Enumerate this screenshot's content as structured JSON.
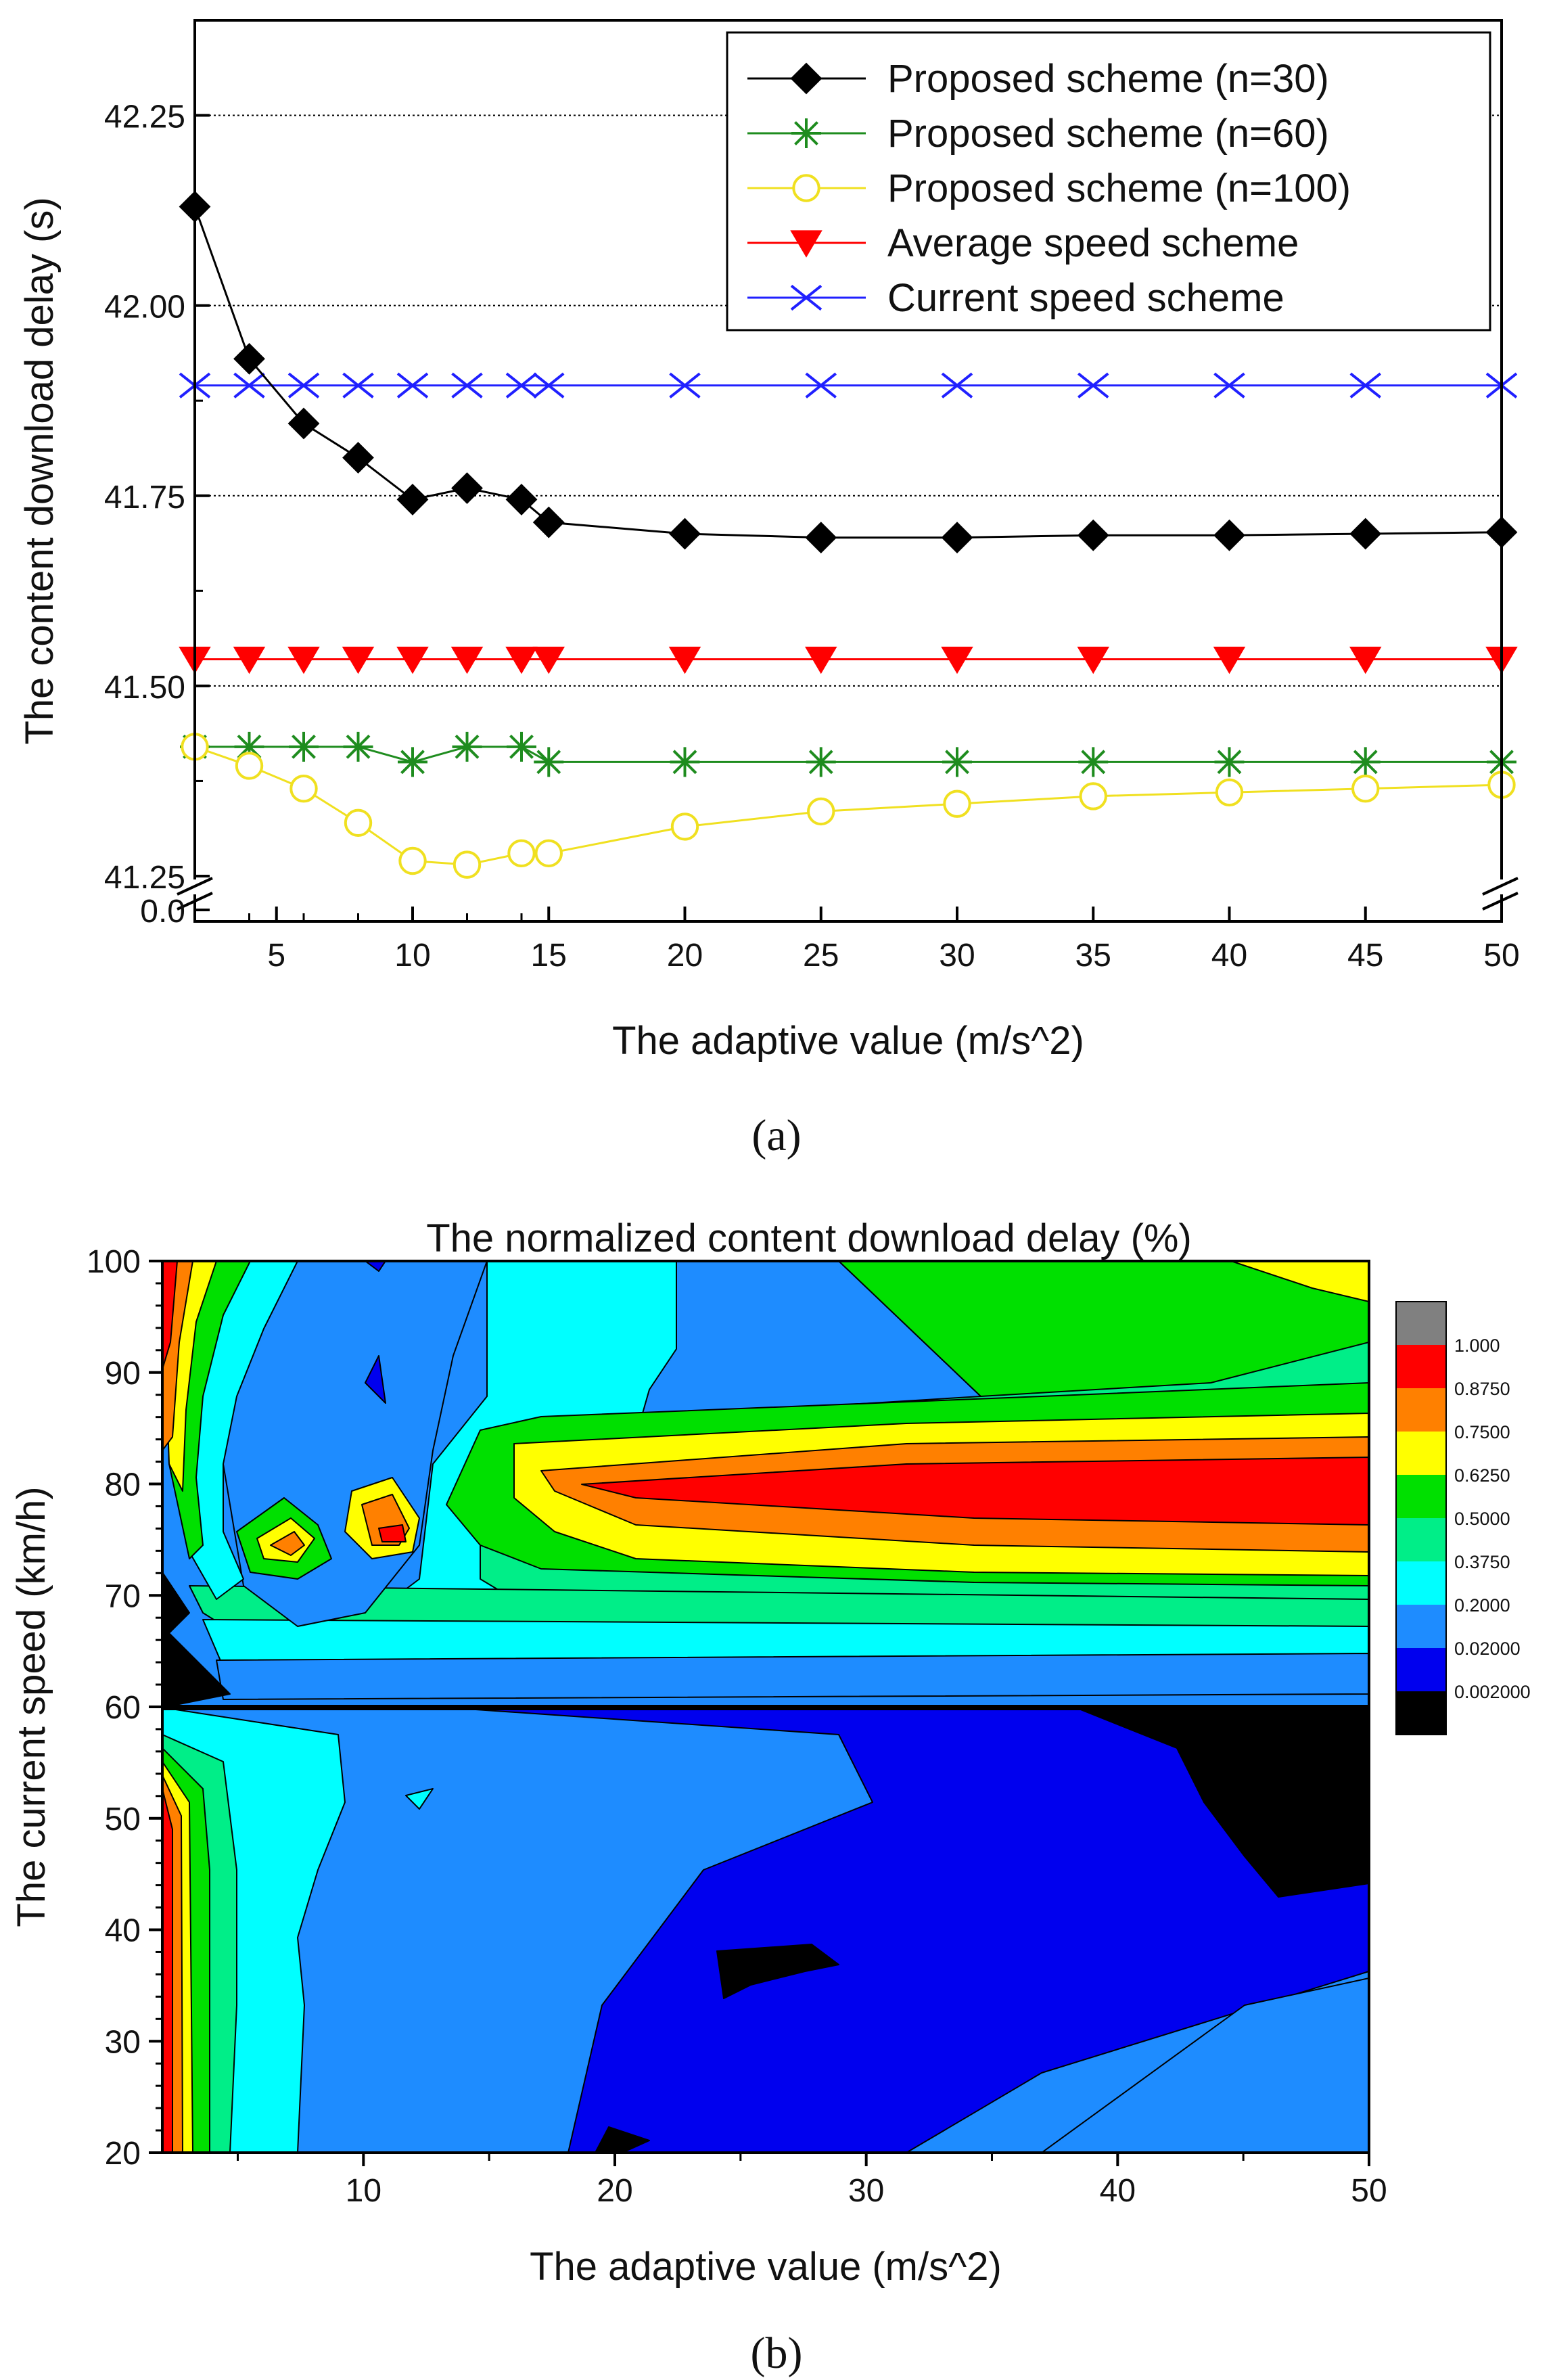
{
  "chart_data": [
    {
      "panel_label": "(a)",
      "type": "line",
      "xlabel": "The adaptive value (m/s^2)",
      "ylabel": "The content download delay (s)",
      "x": [
        2,
        4,
        6,
        8,
        10,
        12,
        14,
        15,
        20,
        25,
        30,
        35,
        40,
        45,
        50
      ],
      "x_ticks": [
        "5",
        "10",
        "15",
        "20",
        "25",
        "30",
        "35",
        "40",
        "45",
        "50"
      ],
      "y_ticks": [
        "41.25",
        "41.50",
        "41.75",
        "42.00",
        "42.25"
      ],
      "y_break_tick": "0.0",
      "ylim": [
        41.25,
        42.375
      ],
      "axis_break": true,
      "grid": "horizontal dotted",
      "legend_position": "top-right",
      "series": [
        {
          "name": "Proposed scheme (n=30)",
          "color": "#000000",
          "marker": "diamond",
          "values": [
            42.13,
            41.93,
            41.845,
            41.8,
            41.745,
            41.76,
            41.745,
            41.715,
            41.7,
            41.695,
            41.695,
            41.698,
            41.698,
            41.7,
            41.702
          ]
        },
        {
          "name": "Proposed scheme (n=60)",
          "color": "#1e8c1e",
          "marker": "star",
          "values": [
            41.42,
            41.42,
            41.42,
            41.42,
            41.4,
            41.42,
            41.42,
            41.4,
            41.4,
            41.4,
            41.4,
            41.4,
            41.4,
            41.4,
            41.4
          ]
        },
        {
          "name": "Proposed scheme (n=100)",
          "color": "#f0e020",
          "marker": "circle",
          "values": [
            41.42,
            41.395,
            41.365,
            41.32,
            41.27,
            41.265,
            41.28,
            41.28,
            41.315,
            41.335,
            41.345,
            41.355,
            41.36,
            41.365,
            41.37
          ]
        },
        {
          "name": "Average speed scheme",
          "color": "#ff0000",
          "marker": "triangle-down",
          "values": [
            41.535,
            41.535,
            41.535,
            41.535,
            41.535,
            41.535,
            41.535,
            41.535,
            41.535,
            41.535,
            41.535,
            41.535,
            41.535,
            41.535,
            41.535
          ]
        },
        {
          "name": "Current speed scheme",
          "color": "#2020ff",
          "marker": "x",
          "values": [
            41.895,
            41.895,
            41.895,
            41.895,
            41.895,
            41.895,
            41.895,
            41.895,
            41.895,
            41.895,
            41.895,
            41.895,
            41.895,
            41.895,
            41.895
          ]
        }
      ]
    },
    {
      "panel_label": "(b)",
      "type": "heatmap",
      "title": "The normalized content download delay (%)",
      "xlabel": "The adaptive value (m/s^2)",
      "ylabel": "The current speed (km/h)",
      "xlim": [
        2,
        50
      ],
      "ylim": [
        20,
        100
      ],
      "x_ticks": [
        "10",
        "20",
        "30",
        "40",
        "50"
      ],
      "y_ticks": [
        "20",
        "30",
        "40",
        "50",
        "60",
        "70",
        "80",
        "90",
        "100"
      ],
      "colorbar": {
        "labels": [
          "1.000",
          "0.8750",
          "0.7500",
          "0.6250",
          "0.5000",
          "0.3750",
          "0.2000",
          "0.02000",
          "0.002000"
        ],
        "colors": [
          "#808080",
          "#ff0000",
          "#ff8000",
          "#ffff00",
          "#00e000",
          "#00ee88",
          "#00ffff",
          "#1e8cff",
          "#0000ee",
          "#000000"
        ]
      },
      "levels_colors": {
        "black": "#000000",
        "blue": "#0000ee",
        "lightblue": "#1e8cff",
        "cyan": "#00ffff",
        "seagreen": "#00ee88",
        "green": "#00e000",
        "yellow": "#ffff00",
        "orange": "#ff8000",
        "red": "#ff0000"
      }
    }
  ]
}
